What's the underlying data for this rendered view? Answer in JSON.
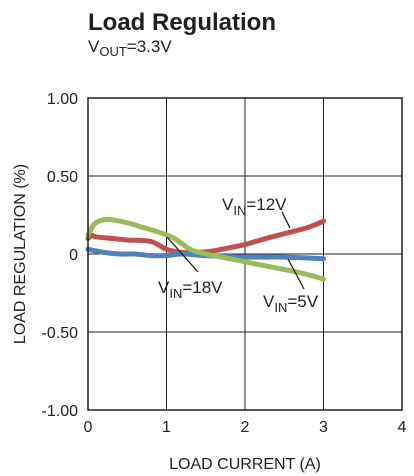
{
  "chart_data": {
    "type": "line",
    "title": "Load Regulation",
    "subtitle": {
      "main": "V",
      "sub": "OUT",
      "rest": "=3.3V"
    },
    "xlabel": "LOAD CURRENT (A)",
    "ylabel": "LOAD REGULATION (%)",
    "xlim": [
      0,
      4
    ],
    "ylim": [
      -1.0,
      1.0
    ],
    "x_ticks": [
      0,
      1,
      2,
      3,
      4
    ],
    "x_tick_labels": [
      "0",
      "1",
      "2",
      "3",
      "4"
    ],
    "y_ticks": [
      1.0,
      0.5,
      0,
      -0.5,
      -1.0
    ],
    "y_tick_labels": [
      "1.00",
      "0.50",
      "0",
      "-0.50",
      "-1.00"
    ],
    "grid": true,
    "series": [
      {
        "name": "VIN=12V",
        "label": {
          "main": "V",
          "sub": "IN",
          "rest": "=12V"
        },
        "color": "#c0504d",
        "x": [
          0,
          0.05,
          0.1,
          0.3,
          0.5,
          0.8,
          1.0,
          1.2,
          1.4,
          1.6,
          1.8,
          2.0,
          2.2,
          2.5,
          2.8,
          3.0
        ],
        "y": [
          0.1,
          0.12,
          0.11,
          0.1,
          0.09,
          0.08,
          0.03,
          0.01,
          0.01,
          0.02,
          0.04,
          0.06,
          0.09,
          0.13,
          0.17,
          0.21
        ]
      },
      {
        "name": "VIN=18V",
        "label": {
          "main": "V",
          "sub": "IN",
          "rest": "=18V"
        },
        "color": "#4f81bd",
        "x": [
          0,
          0.1,
          0.2,
          0.4,
          0.6,
          0.8,
          1.0,
          1.2,
          1.5,
          2.0,
          2.5,
          3.0
        ],
        "y": [
          0.03,
          0.02,
          0.01,
          0.0,
          0.0,
          -0.01,
          -0.01,
          0.0,
          -0.01,
          -0.02,
          -0.02,
          -0.03
        ]
      },
      {
        "name": "VIN=5V",
        "label": {
          "main": "V",
          "sub": "IN",
          "rest": "=5V"
        },
        "color": "#9bbb59",
        "x": [
          0,
          0.05,
          0.1,
          0.2,
          0.3,
          0.5,
          0.7,
          0.9,
          1.1,
          1.3,
          1.5,
          1.8,
          2.1,
          2.4,
          2.7,
          3.0
        ],
        "y": [
          0.12,
          0.17,
          0.2,
          0.22,
          0.22,
          0.2,
          0.17,
          0.14,
          0.1,
          0.03,
          0.0,
          -0.03,
          -0.06,
          -0.09,
          -0.12,
          -0.16
        ]
      }
    ]
  }
}
